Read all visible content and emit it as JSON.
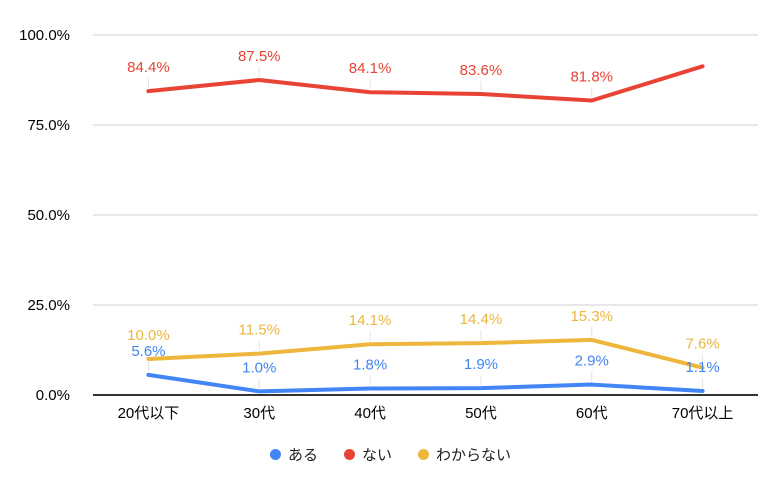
{
  "chart_data": {
    "type": "line",
    "title": "",
    "xlabel": "",
    "ylabel": "",
    "categories": [
      "20代以下",
      "30代",
      "40代",
      "50代",
      "60代",
      "70代以上"
    ],
    "series": [
      {
        "name": "ある",
        "color": "#4285F4",
        "values": [
          5.6,
          1.0,
          1.8,
          1.9,
          2.9,
          1.1
        ],
        "labels": [
          "5.6%",
          "1.0%",
          "1.8%",
          "1.9%",
          "2.9%",
          "1.1%"
        ]
      },
      {
        "name": "ない",
        "color": "#E94335",
        "values": [
          84.4,
          87.5,
          84.1,
          83.6,
          81.8,
          91.3
        ],
        "labels": [
          "84.4%",
          "87.5%",
          "84.1%",
          "83.6%",
          "81.8%",
          ""
        ]
      },
      {
        "name": "わからない",
        "color": "#EDB63C",
        "values": [
          10.0,
          11.5,
          14.1,
          14.4,
          15.3,
          7.6
        ],
        "labels": [
          "10.0%",
          "11.5%",
          "14.1%",
          "14.4%",
          "15.3%",
          "7.6%"
        ]
      }
    ],
    "y_ticks": [
      {
        "value": 0,
        "label": "0.0%"
      },
      {
        "value": 25,
        "label": "25.0%"
      },
      {
        "value": 50,
        "label": "50.0%"
      },
      {
        "value": 75,
        "label": "75.0%"
      },
      {
        "value": 100,
        "label": "100.0%"
      }
    ],
    "ylim": [
      0,
      100
    ],
    "grid": true,
    "legend_position": "bottom"
  },
  "colors": {
    "grid": "#E0E0E0",
    "axis": "#333333",
    "axis_text": "#000000",
    "label_leader": "#E3E3E3",
    "legend_text": "#212121",
    "background": "#FFFFFF"
  }
}
